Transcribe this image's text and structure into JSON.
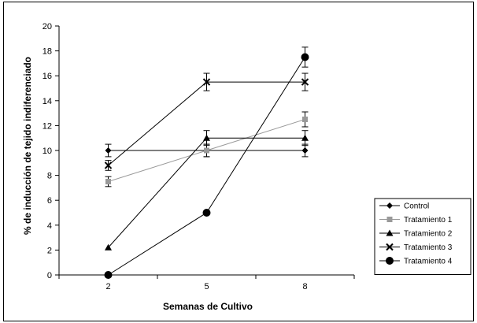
{
  "chart_data": {
    "type": "line",
    "title": "",
    "xlabel": "Semanas de Cultivo",
    "ylabel": "% de inducción de tejido indiferenciado",
    "categories": [
      "2",
      "5",
      "8"
    ],
    "ylim": [
      0,
      20
    ],
    "yticks": [
      0,
      2,
      4,
      6,
      8,
      10,
      12,
      14,
      16,
      18,
      20
    ],
    "grid": false,
    "legend_position": "right",
    "series": [
      {
        "name": "Control",
        "values": [
          10,
          10,
          10
        ],
        "errors": [
          0.5,
          0.5,
          0.5
        ],
        "marker": "diamond",
        "color": "#000000"
      },
      {
        "name": "Tratamiento 1",
        "values": [
          7.5,
          10,
          12.5
        ],
        "errors": [
          0.4,
          0.5,
          0.6
        ],
        "marker": "square",
        "color": "#999999"
      },
      {
        "name": "Tratamiento 2",
        "values": [
          2.2,
          11,
          11
        ],
        "errors": [
          0,
          0.6,
          0.6
        ],
        "marker": "triangle",
        "color": "#000000"
      },
      {
        "name": "Tratamiento 3",
        "values": [
          8.8,
          15.5,
          15.5
        ],
        "errors": [
          0.4,
          0.7,
          0.7
        ],
        "marker": "x",
        "color": "#000000"
      },
      {
        "name": "Tratamiento 4",
        "values": [
          0,
          5,
          17.5
        ],
        "errors": [
          0,
          0,
          0.8
        ],
        "marker": "circle",
        "color": "#000000"
      }
    ]
  }
}
